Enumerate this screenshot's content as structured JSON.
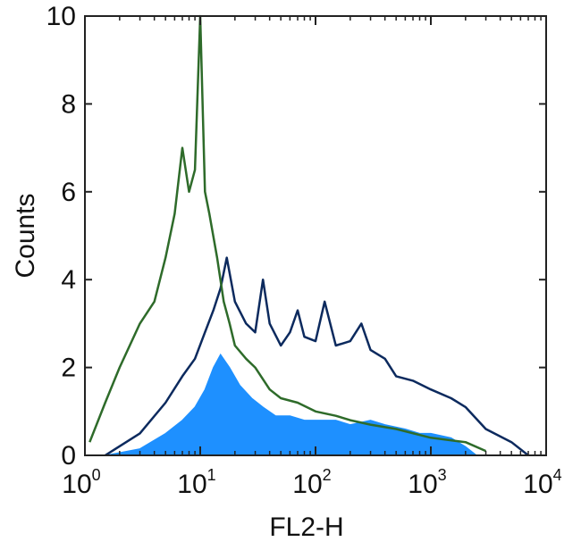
{
  "chart_data": {
    "type": "area",
    "title": "",
    "xlabel": "FL2-H",
    "ylabel": "Counts",
    "xscale": "log",
    "xlim": [
      1,
      10000
    ],
    "ylim": [
      0,
      10
    ],
    "x_ticks": [
      {
        "base": "10",
        "exp": "0"
      },
      {
        "base": "10",
        "exp": "1"
      },
      {
        "base": "10",
        "exp": "2"
      },
      {
        "base": "10",
        "exp": "3"
      },
      {
        "base": "10",
        "exp": "4"
      }
    ],
    "y_ticks": [
      "0",
      "2",
      "4",
      "6",
      "8",
      "10"
    ],
    "grid": false,
    "legend": "none",
    "series": [
      {
        "style": "filled",
        "color": "#1e90ff",
        "x": [
          1.5,
          3,
          5,
          7,
          9,
          11,
          13,
          15,
          18,
          22,
          28,
          35,
          45,
          60,
          80,
          100,
          150,
          200,
          300,
          400,
          600,
          800,
          1000,
          1500,
          2000,
          2500
        ],
        "y": [
          0,
          0.15,
          0.5,
          0.8,
          1.1,
          1.5,
          2.0,
          2.3,
          2.0,
          1.6,
          1.3,
          1.1,
          0.9,
          0.9,
          0.8,
          0.8,
          0.8,
          0.7,
          0.8,
          0.7,
          0.6,
          0.5,
          0.5,
          0.4,
          0.2,
          0
        ]
      },
      {
        "style": "line",
        "color": "#0c2a5e",
        "x": [
          1.5,
          3,
          5,
          7,
          9,
          11,
          13,
          15,
          17,
          20,
          25,
          30,
          35,
          40,
          50,
          60,
          70,
          80,
          100,
          120,
          150,
          200,
          250,
          300,
          400,
          500,
          700,
          1000,
          1500,
          2000,
          3000,
          5000,
          7000
        ],
        "y": [
          0,
          0.5,
          1.2,
          1.8,
          2.2,
          2.8,
          3.3,
          3.8,
          4.5,
          3.5,
          3.0,
          2.8,
          4.0,
          3.0,
          2.5,
          2.8,
          3.3,
          2.7,
          2.6,
          3.5,
          2.5,
          2.6,
          3.0,
          2.4,
          2.2,
          1.8,
          1.7,
          1.5,
          1.3,
          1.1,
          0.6,
          0.3,
          0
        ]
      },
      {
        "style": "line",
        "color": "#2e6b2a",
        "x": [
          1.1,
          1.5,
          2,
          3,
          4,
          5,
          6,
          7,
          8,
          9,
          10,
          11,
          12,
          14,
          16,
          18,
          20,
          25,
          30,
          40,
          50,
          70,
          100,
          150,
          200,
          300,
          500,
          1000,
          2000,
          3000
        ],
        "y": [
          0.3,
          1.2,
          2.0,
          3.0,
          3.5,
          4.5,
          5.5,
          7.0,
          6.0,
          6.5,
          10.0,
          6.0,
          5.5,
          4.5,
          3.5,
          3.0,
          2.5,
          2.2,
          2.0,
          1.5,
          1.3,
          1.2,
          1.0,
          0.9,
          0.8,
          0.7,
          0.6,
          0.4,
          0.3,
          0.1
        ]
      }
    ]
  }
}
